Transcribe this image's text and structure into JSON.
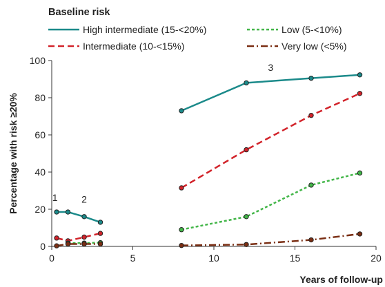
{
  "chart_data": {
    "type": "line",
    "title": "",
    "xlabel": "Years of follow-up",
    "ylabel": "Percentage with risk ≥20%",
    "xlim": [
      0,
      20
    ],
    "ylim": [
      0,
      100
    ],
    "xticks": [
      0,
      5,
      10,
      15,
      20
    ],
    "yticks": [
      0,
      20,
      40,
      60,
      80,
      100
    ],
    "grid": false,
    "legend": {
      "title": "Baseline risk",
      "placement": "top"
    },
    "series": [
      {
        "name": "High intermediate (15-<20%)",
        "color": "#1b8a8a",
        "dash": "solid",
        "segments": [
          [
            [
              0.3,
              18.5
            ],
            [
              1,
              18.5
            ],
            [
              2,
              16
            ],
            [
              3,
              13
            ]
          ],
          [
            [
              8,
              73
            ],
            [
              12,
              88
            ],
            [
              16,
              90.5
            ],
            [
              19,
              92.3
            ]
          ]
        ]
      },
      {
        "name": "Intermediate (10-<15%)",
        "color": "#d2232a",
        "dash": "dashed",
        "segments": [
          [
            [
              0.3,
              4.5
            ],
            [
              1,
              3
            ],
            [
              2,
              5
            ],
            [
              3,
              7
            ]
          ],
          [
            [
              8,
              31.5
            ],
            [
              12,
              52
            ],
            [
              16,
              70.5
            ],
            [
              19,
              82.3
            ]
          ]
        ]
      },
      {
        "name": "Low (5-<10%)",
        "color": "#43b649",
        "dash": "dotted",
        "segments": [
          [
            [
              1,
              1.8
            ],
            [
              2,
              1.8
            ],
            [
              3,
              2
            ]
          ],
          [
            [
              8,
              9
            ],
            [
              12,
              16
            ],
            [
              16,
              33
            ],
            [
              19,
              39.5
            ]
          ]
        ]
      },
      {
        "name": "Very low (<5%)",
        "color": "#7a2e13",
        "dash": "dashdot",
        "segments": [
          [
            [
              0.3,
              0.3
            ],
            [
              1,
              1.3
            ],
            [
              2,
              1.3
            ],
            [
              3,
              1.3
            ]
          ],
          [
            [
              8,
              0.5
            ],
            [
              12,
              1
            ],
            [
              16,
              3.5
            ],
            [
              19,
              6.7
            ]
          ]
        ]
      }
    ],
    "annotations": [
      {
        "text": "1",
        "x": 0.2,
        "y": 24.5
      },
      {
        "text": "2",
        "x": 2,
        "y": 23.5
      },
      {
        "text": "3",
        "x": 13.5,
        "y": 94.5
      }
    ]
  }
}
